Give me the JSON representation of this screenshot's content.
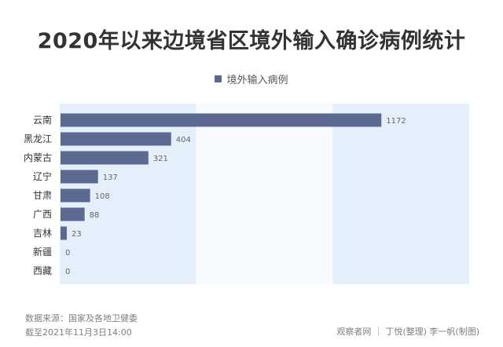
{
  "chart_data": {
    "type": "bar",
    "orientation": "horizontal",
    "title": "2020年以来边境省区境外输入确诊病例统计",
    "legend": "境外输入病例",
    "categories": [
      "云南",
      "黑龙江",
      "内蒙古",
      "辽宁",
      "甘肃",
      "广西",
      "吉林",
      "新疆",
      "西藏"
    ],
    "series": [
      {
        "name": "境外输入病例",
        "values": [
          1172,
          404,
          321,
          137,
          108,
          88,
          23,
          0,
          0
        ],
        "color": "#5c6a92"
      }
    ],
    "xlim": [
      0,
      1200
    ],
    "grid": false,
    "legend_position": "top-center",
    "background_bands": [
      "#e4effb",
      "#f7fafe",
      "#e4effb"
    ]
  },
  "footer": {
    "source": "数据来源：国家及各地卫健委",
    "cutoff": "截至2021年11月3日14:00",
    "credit": "观察者网 ｜ 丁悦(整理) 李一帆(制图)"
  }
}
